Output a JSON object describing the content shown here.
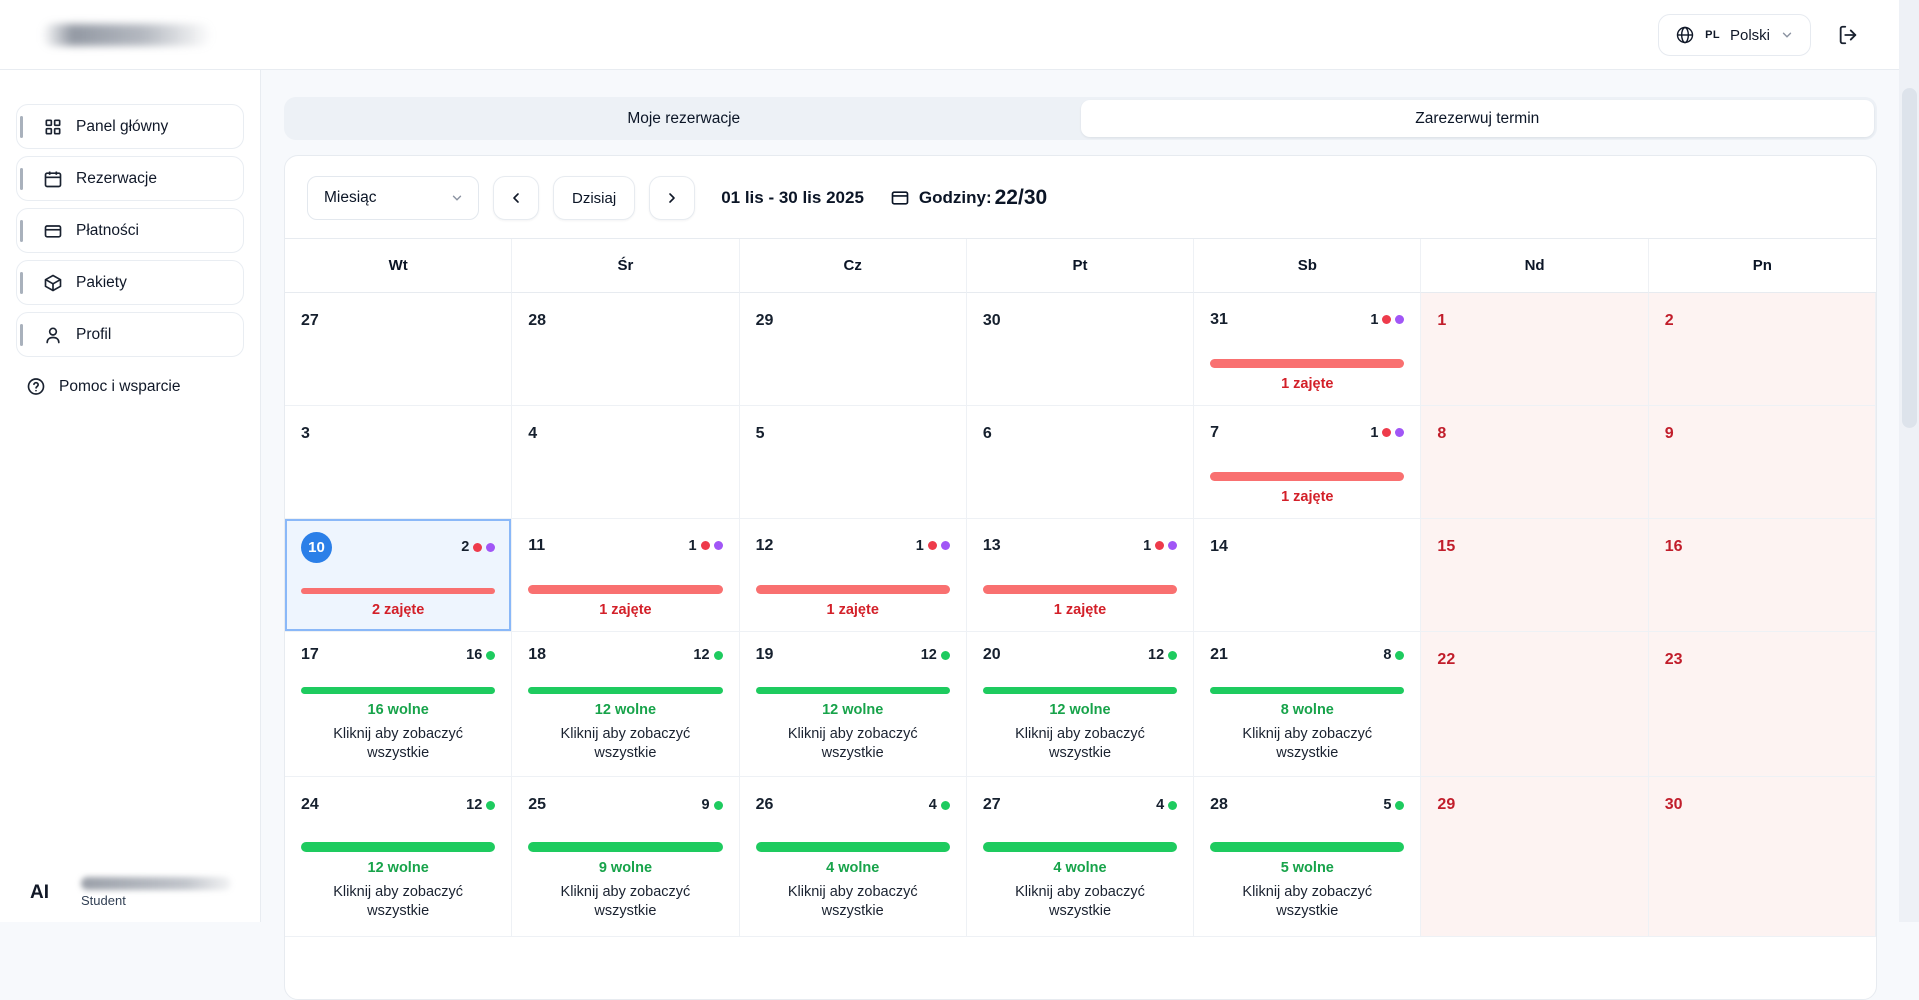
{
  "header": {
    "language": {
      "code": "PL",
      "label": "Polski"
    }
  },
  "sidebar": {
    "items": [
      {
        "label": "Panel główny",
        "icon": "dashboard-icon"
      },
      {
        "label": "Rezerwacje",
        "icon": "calendar-icon"
      },
      {
        "label": "Płatności",
        "icon": "credit-card-icon"
      },
      {
        "label": "Pakiety",
        "icon": "package-icon"
      },
      {
        "label": "Profil",
        "icon": "user-icon"
      }
    ],
    "help": {
      "label": "Pomoc i wsparcie",
      "icon": "help-circle-icon"
    },
    "user": {
      "initials": "AI",
      "role": "Student"
    }
  },
  "tabs": [
    {
      "label": "Moje rezerwacje",
      "active": false
    },
    {
      "label": "Zarezerwuj termin",
      "active": true
    }
  ],
  "toolbar": {
    "view_select": "Miesiąc",
    "today_label": "Dzisiaj",
    "date_range": "01 lis - 30 lis 2025",
    "hours_label": "Godziny:",
    "hours_value": "22/30"
  },
  "calendar": {
    "day_headers": [
      "Wt",
      "Śr",
      "Cz",
      "Pt",
      "Sb",
      "Nd",
      "Pn"
    ],
    "hint": "Kliknij aby zobaczyć wszystkie",
    "weeks": [
      [
        {
          "day": "27",
          "type": "plain"
        },
        {
          "day": "28",
          "type": "plain"
        },
        {
          "day": "29",
          "type": "plain"
        },
        {
          "day": "30",
          "type": "plain"
        },
        {
          "day": "31",
          "type": "busy",
          "count": "1",
          "label": "1 zajęte"
        },
        {
          "day": "1",
          "type": "weekend"
        },
        {
          "day": "2",
          "type": "weekend"
        }
      ],
      [
        {
          "day": "3",
          "type": "plain"
        },
        {
          "day": "4",
          "type": "plain"
        },
        {
          "day": "5",
          "type": "plain"
        },
        {
          "day": "6",
          "type": "plain"
        },
        {
          "day": "7",
          "type": "busy",
          "count": "1",
          "label": "1 zajęte"
        },
        {
          "day": "8",
          "type": "weekend"
        },
        {
          "day": "9",
          "type": "weekend"
        }
      ],
      [
        {
          "day": "10",
          "type": "busy",
          "count": "2",
          "label": "2 zajęte",
          "selected": true
        },
        {
          "day": "11",
          "type": "busy",
          "count": "1",
          "label": "1 zajęte"
        },
        {
          "day": "12",
          "type": "busy",
          "count": "1",
          "label": "1 zajęte"
        },
        {
          "day": "13",
          "type": "busy",
          "count": "1",
          "label": "1 zajęte"
        },
        {
          "day": "14",
          "type": "plain"
        },
        {
          "day": "15",
          "type": "weekend"
        },
        {
          "day": "16",
          "type": "weekend"
        }
      ],
      [
        {
          "day": "17",
          "type": "free",
          "count": "16",
          "label": "16 wolne"
        },
        {
          "day": "18",
          "type": "free",
          "count": "12",
          "label": "12 wolne"
        },
        {
          "day": "19",
          "type": "free",
          "count": "12",
          "label": "12 wolne"
        },
        {
          "day": "20",
          "type": "free",
          "count": "12",
          "label": "12 wolne"
        },
        {
          "day": "21",
          "type": "free",
          "count": "8",
          "label": "8 wolne"
        },
        {
          "day": "22",
          "type": "weekend"
        },
        {
          "day": "23",
          "type": "weekend"
        }
      ],
      [
        {
          "day": "24",
          "type": "free",
          "count": "12",
          "label": "12 wolne"
        },
        {
          "day": "25",
          "type": "free",
          "count": "9",
          "label": "9 wolne"
        },
        {
          "day": "26",
          "type": "free",
          "count": "4",
          "label": "4 wolne"
        },
        {
          "day": "27",
          "type": "free",
          "count": "4",
          "label": "4 wolne"
        },
        {
          "day": "28",
          "type": "free",
          "count": "5",
          "label": "5 wolne"
        },
        {
          "day": "29",
          "type": "weekend"
        },
        {
          "day": "30",
          "type": "weekend"
        }
      ]
    ]
  },
  "colors": {
    "accent_blue": "#2b7fe8",
    "selected_cell_bg": "#eef5fe",
    "selected_cell_border": "#8ab8f8",
    "busy_bar": "#f97070",
    "busy_text": "#d32029",
    "busy_dot_red": "#ee3b4b",
    "busy_dot_purple": "#a156f6",
    "free_bar": "#1ecb5f",
    "free_text": "#17a34a",
    "weekend_bg": "#fdf3f2",
    "weekend_text": "#c11d2b"
  }
}
